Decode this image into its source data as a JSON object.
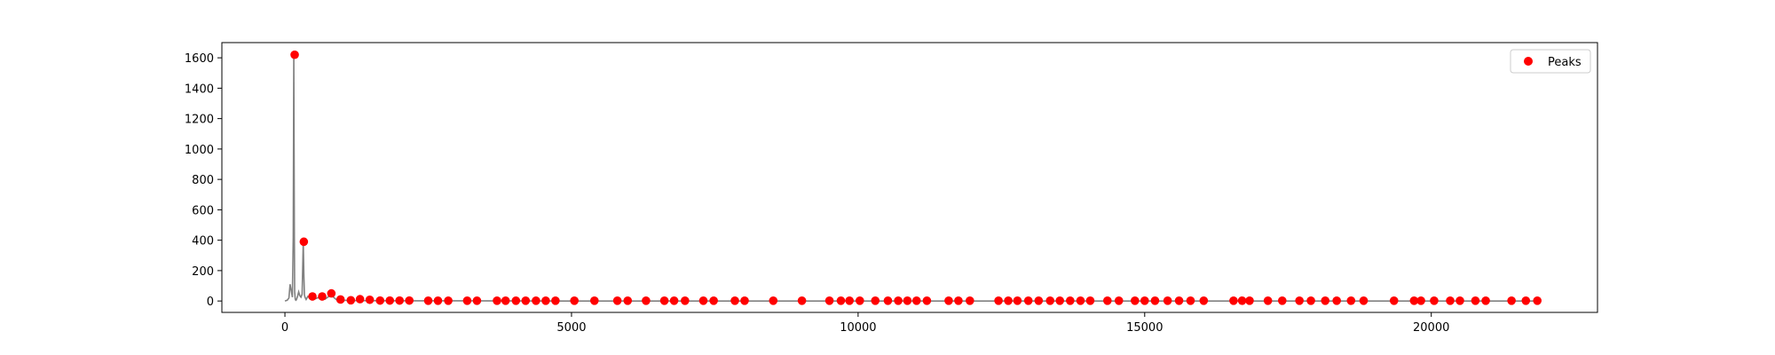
{
  "chart_data": {
    "type": "line",
    "title": "",
    "xlabel": "",
    "ylabel": "",
    "xlim": [
      -1100,
      22900
    ],
    "ylim": [
      -75,
      1700
    ],
    "xticks": [
      0,
      5000,
      10000,
      15000,
      20000
    ],
    "yticks": [
      0,
      200,
      400,
      600,
      800,
      1000,
      1200,
      1400,
      1600
    ],
    "grid": false,
    "legend": {
      "position": "top-right",
      "entries": [
        {
          "label": "Peaks",
          "color": "#ff0000",
          "marker": "circle"
        }
      ]
    },
    "series": [
      {
        "kind": "line",
        "color": "#808080",
        "x": [
          0,
          40,
          70,
          90,
          110,
          130,
          145,
          155,
          165,
          170,
          180,
          190,
          200,
          220,
          240,
          260,
          280,
          300,
          320,
          330,
          340,
          350,
          370,
          400,
          450,
          500,
          600,
          700,
          800,
          900,
          1000,
          1200,
          1500,
          2000,
          3000,
          5000,
          10000,
          15000,
          20000,
          21900
        ],
        "y": [
          0,
          5,
          20,
          110,
          70,
          25,
          420,
          1620,
          400,
          60,
          12,
          5,
          8,
          30,
          60,
          35,
          25,
          45,
          390,
          180,
          40,
          25,
          10,
          30,
          18,
          10,
          25,
          12,
          40,
          8,
          5,
          3,
          2,
          1,
          1,
          0,
          0,
          0,
          0,
          0
        ]
      },
      {
        "kind": "scatter",
        "name": "Peaks",
        "color": "#ff0000",
        "x": [
          170,
          330,
          480,
          650,
          810,
          970,
          1150,
          1310,
          1480,
          1660,
          1830,
          2000,
          2170,
          2500,
          2670,
          2850,
          3180,
          3350,
          3700,
          3850,
          4030,
          4200,
          4380,
          4550,
          4720,
          5050,
          5400,
          5800,
          5980,
          6300,
          6620,
          6790,
          6980,
          7300,
          7480,
          7850,
          8020,
          8520,
          9020,
          9500,
          9700,
          9850,
          10030,
          10300,
          10520,
          10700,
          10860,
          11020,
          11200,
          11580,
          11750,
          11950,
          12450,
          12620,
          12780,
          12970,
          13150,
          13350,
          13520,
          13700,
          13880,
          14050,
          14350,
          14550,
          14830,
          15000,
          15180,
          15400,
          15600,
          15800,
          16030,
          16550,
          16700,
          16830,
          17150,
          17400,
          17700,
          17900,
          18150,
          18350,
          18600,
          18820,
          19350,
          19700,
          19820,
          20050,
          20330,
          20500,
          20770,
          20950,
          21400,
          21650,
          21850
        ],
        "y": [
          1620,
          390,
          30,
          30,
          50,
          10,
          5,
          12,
          8,
          3,
          3,
          3,
          3,
          2,
          2,
          2,
          2,
          2,
          2,
          2,
          2,
          2,
          2,
          2,
          2,
          2,
          2,
          2,
          2,
          2,
          2,
          2,
          2,
          2,
          2,
          2,
          2,
          2,
          2,
          2,
          2,
          2,
          2,
          2,
          2,
          2,
          2,
          2,
          2,
          2,
          2,
          2,
          2,
          2,
          2,
          2,
          2,
          2,
          2,
          2,
          2,
          2,
          2,
          2,
          2,
          2,
          2,
          2,
          2,
          2,
          2,
          2,
          2,
          2,
          2,
          2,
          2,
          2,
          2,
          2,
          2,
          2,
          2,
          2,
          2,
          2,
          2,
          2,
          2,
          2,
          2,
          2,
          2
        ]
      }
    ]
  }
}
